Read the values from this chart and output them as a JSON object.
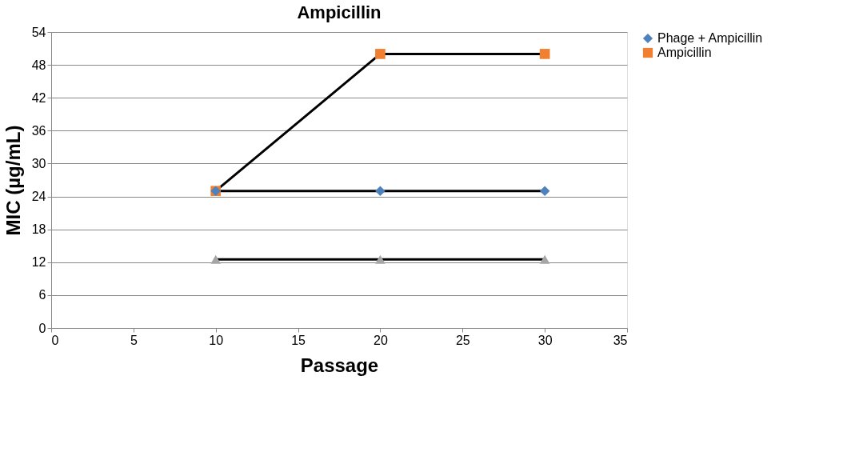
{
  "chart_data": {
    "type": "line",
    "title": "Ampicillin",
    "xlabel": "Passage",
    "ylabel": "MIC (µg/mL)",
    "x": [
      10,
      20,
      30
    ],
    "series": [
      {
        "name": "Phage + Ampicillin",
        "color": "#4f81bd",
        "marker": "diamond",
        "values": [
          25,
          25,
          25
        ]
      },
      {
        "name": "Ampicillin",
        "color": "#f07f2f",
        "marker": "square",
        "values": [
          25,
          50,
          50
        ]
      },
      {
        "color": "#a5a5a5",
        "marker": "triangle",
        "values": [
          12.5,
          12.5,
          12.5
        ]
      }
    ],
    "xlim": [
      0,
      35
    ],
    "xticks": [
      0,
      5,
      10,
      15,
      20,
      25,
      30,
      35
    ],
    "ylim": [
      0,
      54
    ],
    "yticks": [
      0,
      6,
      12,
      18,
      24,
      30,
      36,
      42,
      48,
      54
    ],
    "grid": "y",
    "legend": "right",
    "line_style": "solid"
  }
}
